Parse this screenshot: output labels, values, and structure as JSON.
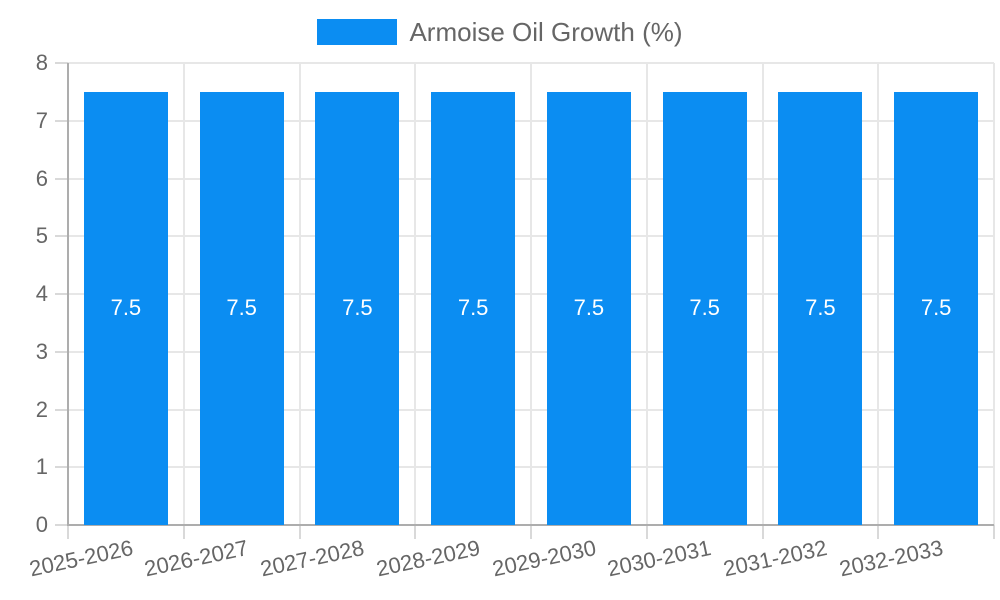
{
  "legend": {
    "label": "Armoise Oil Growth (%)"
  },
  "chart_data": {
    "type": "bar",
    "title": "",
    "xlabel": "",
    "ylabel": "",
    "categories": [
      "2025-2026",
      "2026-2027",
      "2027-2028",
      "2028-2029",
      "2029-2030",
      "2030-2031",
      "2031-2032",
      "2032-2033"
    ],
    "series": [
      {
        "name": "Armoise Oil Growth (%)",
        "values": [
          7.5,
          7.5,
          7.5,
          7.5,
          7.5,
          7.5,
          7.5,
          7.5
        ],
        "color": "#0b8df2"
      }
    ],
    "value_labels": [
      "7.5",
      "7.5",
      "7.5",
      "7.5",
      "7.5",
      "7.5",
      "7.5",
      "7.5"
    ],
    "ylim": [
      0,
      8
    ],
    "yticks": [
      0,
      1,
      2,
      3,
      4,
      5,
      6,
      7,
      8
    ],
    "grid": true,
    "legend_position": "top",
    "x_label_rotation_deg": -12,
    "colors": {
      "grid": "#e7e7e7",
      "tick_mark": "#d9d9d9",
      "axis_line": "#adadad",
      "tick_text": "#666666",
      "legend_text": "#666666",
      "bar_value_text": "#ffffff"
    }
  }
}
